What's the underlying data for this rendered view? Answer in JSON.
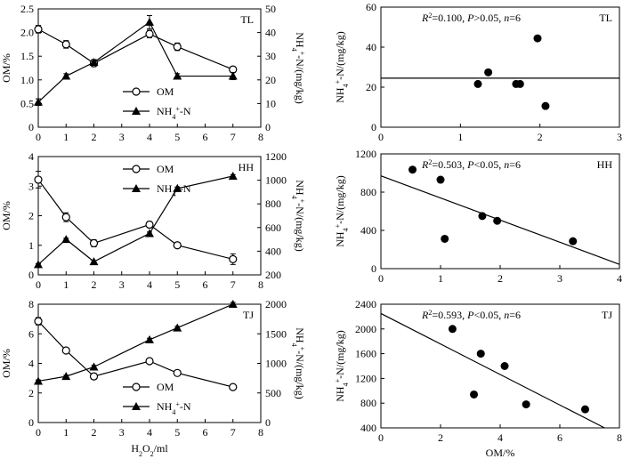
{
  "chart_data": [
    {
      "id": "tl-time",
      "type": "line",
      "site": "TL",
      "x_label": "",
      "y_left_label": "OM/%",
      "y_right_label": "NH₄⁺-N/(mg/kg)",
      "xlim": [
        0,
        8
      ],
      "x_ticks": [
        0,
        1,
        2,
        3,
        4,
        5,
        6,
        7,
        8
      ],
      "ylim_left": [
        0,
        2.5
      ],
      "y_ticks_left": [
        "0",
        "0.5",
        "1.0",
        "1.5",
        "2.0",
        "2.5"
      ],
      "y_tick_values_left": [
        0,
        0.5,
        1.0,
        1.5,
        2.0,
        2.5
      ],
      "ylim_right": [
        0,
        50
      ],
      "y_ticks_right": [
        "0",
        "10",
        "20",
        "30",
        "40",
        "50"
      ],
      "y_tick_values_right": [
        0,
        10,
        20,
        30,
        40,
        50
      ],
      "legend_position": "bottom-center",
      "series": [
        {
          "name": "OM",
          "axis": "left",
          "marker": "open-circle",
          "x": [
            0,
            1,
            2,
            4,
            5,
            7
          ],
          "y": [
            2.07,
            1.75,
            1.35,
            1.97,
            1.7,
            1.22
          ],
          "err": [
            0.08,
            0.08,
            0.07,
            0.08,
            0.08,
            0.06
          ]
        },
        {
          "name": "NH₄⁺-N",
          "axis": "right",
          "marker": "filled-triangle",
          "x": [
            0,
            1,
            2,
            4,
            5,
            7
          ],
          "y": [
            10.6,
            21.6,
            27.4,
            44.4,
            21.6,
            21.6
          ],
          "err": [
            1.4,
            1.0,
            1.2,
            2.8,
            1.0,
            1.5
          ]
        }
      ]
    },
    {
      "id": "tl-corr",
      "type": "scatter",
      "site": "TL",
      "stat_text": "R²=0.100, P>0.05, n=6",
      "x_label": "",
      "y_label": "NH₄⁺-N/(mg/kg)",
      "xlim": [
        0,
        3
      ],
      "x_ticks": [
        0,
        1,
        2,
        3
      ],
      "ylim": [
        0,
        60
      ],
      "y_ticks": [
        0,
        20,
        40,
        60
      ],
      "points": {
        "x": [
          1.22,
          1.35,
          1.7,
          1.75,
          1.97,
          2.07
        ],
        "y": [
          21.6,
          27.4,
          21.6,
          21.6,
          44.4,
          10.6
        ]
      },
      "fit_line": {
        "x": [
          0,
          3
        ],
        "y": [
          24.5,
          24.5
        ]
      }
    },
    {
      "id": "hh-time",
      "type": "line",
      "site": "HH",
      "x_label": "",
      "y_left_label": "OM/%",
      "y_right_label": "NH₄⁺-N/(mg/kg)",
      "xlim": [
        0,
        8
      ],
      "x_ticks": [
        0,
        1,
        2,
        3,
        4,
        5,
        6,
        7,
        8
      ],
      "ylim_left": [
        0,
        4
      ],
      "y_ticks_left": [
        "0",
        "1",
        "2",
        "3",
        "4"
      ],
      "y_tick_values_left": [
        0,
        1,
        2,
        3,
        4
      ],
      "ylim_right": [
        200,
        1200
      ],
      "y_ticks_right": [
        "200",
        "400",
        "600",
        "800",
        "1000",
        "1200"
      ],
      "y_tick_values_right": [
        200,
        400,
        600,
        800,
        1000,
        1200
      ],
      "legend_position": "top-center",
      "series": [
        {
          "name": "OM",
          "axis": "left",
          "marker": "open-circle",
          "x": [
            0,
            1,
            2,
            4,
            5,
            7
          ],
          "y": [
            3.22,
            1.95,
            1.07,
            1.7,
            1.0,
            0.53
          ],
          "err": [
            0.28,
            0.15,
            0.12,
            0.1,
            0.05,
            0.18
          ]
        },
        {
          "name": "NH₄⁺-N",
          "axis": "right",
          "marker": "filled-triangle",
          "x": [
            0,
            1,
            2,
            4,
            5,
            7
          ],
          "y": [
            287,
            500,
            312,
            550,
            930,
            1035
          ],
          "err": [
            8,
            10,
            8,
            12,
            12,
            12
          ]
        }
      ]
    },
    {
      "id": "hh-corr",
      "type": "scatter",
      "site": "HH",
      "stat_text": "R²=0.503, P<0.05, n=6",
      "x_label": "",
      "y_label": "NH₄⁺-N/(mg/kg)",
      "xlim": [
        0,
        4
      ],
      "x_ticks": [
        0,
        1,
        2,
        3,
        4
      ],
      "ylim": [
        0,
        1200
      ],
      "y_ticks": [
        0,
        400,
        800,
        1200
      ],
      "points": {
        "x": [
          0.53,
          1.0,
          1.07,
          1.7,
          1.95,
          3.22
        ],
        "y": [
          1035,
          930,
          312,
          550,
          500,
          287
        ]
      },
      "fit_line": {
        "x": [
          0,
          4
        ],
        "y": [
          970,
          45
        ]
      }
    },
    {
      "id": "tj-time",
      "type": "line",
      "site": "TJ",
      "x_label": "H₂O₂/ml",
      "y_left_label": "OM/%",
      "y_right_label": "NH₄⁺-N/(mg/kg)",
      "xlim": [
        0,
        8
      ],
      "x_ticks": [
        0,
        1,
        2,
        3,
        4,
        5,
        6,
        7,
        8
      ],
      "ylim_left": [
        0,
        8
      ],
      "y_ticks_left": [
        "0",
        "2",
        "4",
        "6",
        "8"
      ],
      "y_tick_values_left": [
        0,
        2,
        4,
        6,
        8
      ],
      "ylim_right": [
        0,
        2000
      ],
      "y_ticks_right": [
        "0",
        "500",
        "1000",
        "1500",
        "2000"
      ],
      "y_tick_values_right": [
        0,
        500,
        1000,
        1500,
        2000
      ],
      "legend_position": "bottom-center",
      "series": [
        {
          "name": "OM",
          "axis": "left",
          "marker": "open-circle",
          "x": [
            0,
            1,
            2,
            4,
            5,
            7
          ],
          "y": [
            6.85,
            4.87,
            3.12,
            4.15,
            3.35,
            2.4
          ],
          "err": [
            0.25,
            0.1,
            0.2,
            0.1,
            0.08,
            0.08
          ]
        },
        {
          "name": "NH₄⁺-N",
          "axis": "right",
          "marker": "filled-triangle",
          "x": [
            0,
            1,
            2,
            4,
            5,
            7
          ],
          "y": [
            700,
            780,
            940,
            1400,
            1600,
            2000
          ],
          "err": [
            20,
            20,
            25,
            25,
            25,
            30
          ]
        }
      ]
    },
    {
      "id": "tj-corr",
      "type": "scatter",
      "site": "TJ",
      "stat_text": "R²=0.593, P<0.05, n=6",
      "x_label": "OM/%",
      "y_label": "NH₄⁺-N/(mg/kg)",
      "xlim": [
        0,
        8
      ],
      "x_ticks": [
        0,
        2,
        4,
        6,
        8
      ],
      "ylim": [
        400,
        2400
      ],
      "y_ticks": [
        400,
        800,
        1200,
        1600,
        2000,
        2400
      ],
      "points": {
        "x": [
          2.4,
          3.12,
          3.35,
          4.15,
          4.87,
          6.85
        ],
        "y": [
          2000,
          940,
          1600,
          1400,
          780,
          700
        ]
      },
      "fit_line": {
        "x": [
          0,
          7.5
        ],
        "y": [
          2250,
          400
        ]
      }
    }
  ],
  "colors": {
    "ink": "#000000",
    "background": "#ffffff"
  }
}
